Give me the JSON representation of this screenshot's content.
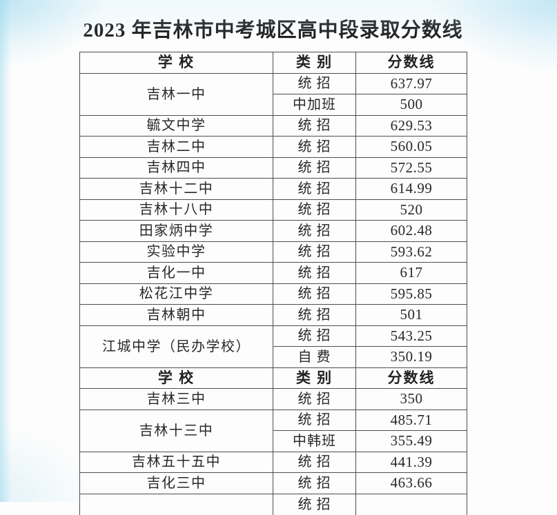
{
  "page": {
    "title": "2023 年吉林市中考城区高中段录取分数线"
  },
  "colors": {
    "ink": "#282828",
    "table_border": "#4d4d4d",
    "paper": "#fdfdfd",
    "scan_edge_tint": "#cdeaf6"
  },
  "table": {
    "header1": {
      "school": "学 校",
      "category": "类 别",
      "score": "分数线"
    },
    "header2": {
      "school": "学 校",
      "category": "类 别",
      "score": "分数线"
    },
    "rows": [
      {
        "school": "吉林一中",
        "category": "统 招",
        "score": "637.97"
      },
      {
        "category": "中加班",
        "score": "500"
      },
      {
        "school": "毓文中学",
        "category": "统 招",
        "score": "629.53"
      },
      {
        "school": "吉林二中",
        "category": "统 招",
        "score": "560.05"
      },
      {
        "school": "吉林四中",
        "category": "统 招",
        "score": "572.55"
      },
      {
        "school": "吉林十二中",
        "category": "统 招",
        "score": "614.99"
      },
      {
        "school": "吉林十八中",
        "category": "统 招",
        "score": "520"
      },
      {
        "school": "田家炳中学",
        "category": "统 招",
        "score": "602.48"
      },
      {
        "school": "实验中学",
        "category": "统 招",
        "score": "593.62"
      },
      {
        "school": "吉化一中",
        "category": "统 招",
        "score": "617"
      },
      {
        "school": "松花江中学",
        "category": "统 招",
        "score": "595.85"
      },
      {
        "school": "吉林朝中",
        "category": "统 招",
        "score": "501"
      },
      {
        "school": "江城中学（民办学校）",
        "category": "统 招",
        "score": "543.25"
      },
      {
        "category": "自 费",
        "score": "350.19"
      },
      {
        "school": "吉林三中",
        "category": "统 招",
        "score": "350"
      },
      {
        "school": "吉林十三中",
        "category": "统 招",
        "score": "485.71"
      },
      {
        "category": "中韩班",
        "score": "355.49"
      },
      {
        "school": "吉林五十五中",
        "category": "统 招",
        "score": "441.39"
      },
      {
        "school": "吉化三中",
        "category": "统 招",
        "score": "463.66"
      },
      {
        "school": "",
        "category": "统 招",
        "score": ""
      }
    ]
  }
}
